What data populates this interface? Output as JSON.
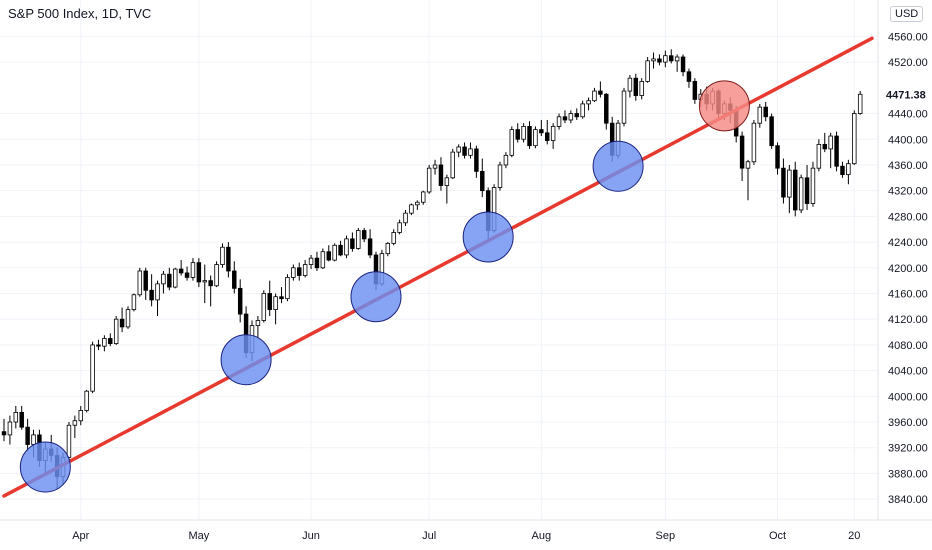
{
  "header": {
    "title": "S&P 500 Index, 1D, TVC",
    "currency": "USD",
    "last_price": "4471.38"
  },
  "chart_data": {
    "type": "candlestick",
    "title": "S&P 500 Index, 1D, TVC",
    "ylim": [
      3820,
      4570
    ],
    "xlim": [
      0,
      147
    ],
    "y_ticks": [
      "3840.00",
      "3880.00",
      "3920.00",
      "3960.00",
      "4000.00",
      "4040.00",
      "4080.00",
      "4120.00",
      "4160.00",
      "4200.00",
      "4240.00",
      "4280.00",
      "4320.00",
      "4360.00",
      "4400.00",
      "4440.00",
      "4520.00",
      "4560.00"
    ],
    "x_ticks": [
      {
        "label": "Apr",
        "x": 13
      },
      {
        "label": "May",
        "x": 33
      },
      {
        "label": "Jun",
        "x": 52
      },
      {
        "label": "Jul",
        "x": 72
      },
      {
        "label": "Aug",
        "x": 91
      },
      {
        "label": "Sep",
        "x": 112
      },
      {
        "label": "Oct",
        "x": 131
      },
      {
        "label": "20",
        "x": 144
      }
    ],
    "trendline": {
      "x1": 0,
      "y1": 3845,
      "x2": 147,
      "y2": 4557,
      "color": "#e8392f"
    },
    "circles": [
      {
        "x": 7,
        "y": 3890,
        "color": "#6b8ff2",
        "stroke": "#1a237e"
      },
      {
        "x": 41,
        "y": 4057,
        "color": "#6b8ff2",
        "stroke": "#1a237e"
      },
      {
        "x": 63,
        "y": 4155,
        "color": "#6b8ff2",
        "stroke": "#1a237e"
      },
      {
        "x": 82,
        "y": 4248,
        "color": "#6b8ff2",
        "stroke": "#1a237e"
      },
      {
        "x": 104,
        "y": 4358,
        "color": "#6b8ff2",
        "stroke": "#1a237e"
      },
      {
        "x": 122,
        "y": 4452,
        "color": "#f48a85",
        "stroke": "#7f1d1d"
      }
    ],
    "candles": [
      [
        3945,
        3965,
        3930,
        3940
      ],
      [
        3940,
        3970,
        3925,
        3960
      ],
      [
        3960,
        3985,
        3950,
        3975
      ],
      [
        3975,
        3985,
        3948,
        3952
      ],
      [
        3952,
        3965,
        3915,
        3925
      ],
      [
        3925,
        3948,
        3905,
        3940
      ],
      [
        3940,
        3948,
        3890,
        3900
      ],
      [
        3900,
        3928,
        3880,
        3918
      ],
      [
        3918,
        3940,
        3898,
        3908
      ],
      [
        3908,
        3920,
        3855,
        3875
      ],
      [
        3875,
        3912,
        3862,
        3905
      ],
      [
        3905,
        3960,
        3900,
        3955
      ],
      [
        3955,
        3970,
        3935,
        3962
      ],
      [
        3962,
        3985,
        3955,
        3978
      ],
      [
        3978,
        4010,
        3975,
        4008
      ],
      [
        4008,
        4085,
        4005,
        4080
      ],
      [
        4080,
        4088,
        4072,
        4078
      ],
      [
        4078,
        4095,
        4070,
        4090
      ],
      [
        4090,
        4098,
        4078,
        4082
      ],
      [
        4082,
        4125,
        4080,
        4120
      ],
      [
        4120,
        4138,
        4100,
        4108
      ],
      [
        4108,
        4140,
        4105,
        4135
      ],
      [
        4135,
        4160,
        4132,
        4158
      ],
      [
        4158,
        4200,
        4155,
        4195
      ],
      [
        4195,
        4200,
        4150,
        4165
      ],
      [
        4165,
        4190,
        4140,
        4150
      ],
      [
        4150,
        4180,
        4125,
        4175
      ],
      [
        4175,
        4195,
        4160,
        4190
      ],
      [
        4190,
        4200,
        4165,
        4170
      ],
      [
        4170,
        4200,
        4168,
        4198
      ],
      [
        4198,
        4212,
        4188,
        4192
      ],
      [
        4192,
        4202,
        4180,
        4185
      ],
      [
        4185,
        4215,
        4180,
        4208
      ],
      [
        4208,
        4215,
        4170,
        4178
      ],
      [
        4178,
        4205,
        4145,
        4180
      ],
      [
        4180,
        4188,
        4140,
        4172
      ],
      [
        4172,
        4210,
        4170,
        4205
      ],
      [
        4205,
        4238,
        4200,
        4232
      ],
      [
        4232,
        4240,
        4185,
        4195
      ],
      [
        4195,
        4210,
        4160,
        4168
      ],
      [
        4168,
        4182,
        4115,
        4128
      ],
      [
        4128,
        4140,
        4060,
        4068
      ],
      [
        4068,
        4118,
        4055,
        4110
      ],
      [
        4110,
        4125,
        4090,
        4118
      ],
      [
        4118,
        4165,
        4115,
        4160
      ],
      [
        4160,
        4180,
        4125,
        4135
      ],
      [
        4135,
        4160,
        4112,
        4155
      ],
      [
        4155,
        4170,
        4145,
        4152
      ],
      [
        4152,
        4190,
        4148,
        4185
      ],
      [
        4185,
        4205,
        4180,
        4200
      ],
      [
        4200,
        4208,
        4180,
        4188
      ],
      [
        4188,
        4212,
        4185,
        4205
      ],
      [
        4205,
        4220,
        4198,
        4215
      ],
      [
        4215,
        4225,
        4195,
        4200
      ],
      [
        4200,
        4230,
        4198,
        4225
      ],
      [
        4225,
        4235,
        4210,
        4212
      ],
      [
        4212,
        4238,
        4210,
        4235
      ],
      [
        4235,
        4242,
        4218,
        4220
      ],
      [
        4220,
        4250,
        4215,
        4245
      ],
      [
        4245,
        4255,
        4225,
        4230
      ],
      [
        4230,
        4262,
        4228,
        4258
      ],
      [
        4258,
        4262,
        4240,
        4245
      ],
      [
        4245,
        4260,
        4215,
        4220
      ],
      [
        4220,
        4225,
        4165,
        4175
      ],
      [
        4175,
        4228,
        4172,
        4222
      ],
      [
        4222,
        4240,
        4218,
        4238
      ],
      [
        4238,
        4260,
        4235,
        4255
      ],
      [
        4255,
        4275,
        4252,
        4270
      ],
      [
        4270,
        4290,
        4265,
        4285
      ],
      [
        4285,
        4300,
        4282,
        4298
      ],
      [
        4298,
        4305,
        4290,
        4302
      ],
      [
        4302,
        4320,
        4298,
        4318
      ],
      [
        4318,
        4360,
        4315,
        4355
      ],
      [
        4355,
        4368,
        4345,
        4360
      ],
      [
        4360,
        4372,
        4320,
        4328
      ],
      [
        4328,
        4345,
        4300,
        4340
      ],
      [
        4340,
        4385,
        4338,
        4380
      ],
      [
        4380,
        4392,
        4372,
        4388
      ],
      [
        4388,
        4395,
        4370,
        4375
      ],
      [
        4375,
        4395,
        4370,
        4385
      ],
      [
        4385,
        4390,
        4340,
        4350
      ],
      [
        4350,
        4370,
        4310,
        4320
      ],
      [
        4320,
        4325,
        4245,
        4258
      ],
      [
        4258,
        4330,
        4255,
        4325
      ],
      [
        4325,
        4365,
        4320,
        4360
      ],
      [
        4360,
        4380,
        4355,
        4375
      ],
      [
        4375,
        4420,
        4372,
        4415
      ],
      [
        4415,
        4425,
        4395,
        4400
      ],
      [
        4400,
        4425,
        4395,
        4420
      ],
      [
        4420,
        4428,
        4385,
        4390
      ],
      [
        4390,
        4420,
        4386,
        4415
      ],
      [
        4415,
        4430,
        4405,
        4410
      ],
      [
        4410,
        4430,
        4392,
        4398
      ],
      [
        4398,
        4425,
        4385,
        4420
      ],
      [
        4420,
        4440,
        4415,
        4435
      ],
      [
        4435,
        4445,
        4425,
        4430
      ],
      [
        4430,
        4445,
        4425,
        4440
      ],
      [
        4440,
        4448,
        4430,
        4435
      ],
      [
        4435,
        4460,
        4432,
        4455
      ],
      [
        4455,
        4465,
        4445,
        4460
      ],
      [
        4460,
        4480,
        4458,
        4475
      ],
      [
        4475,
        4490,
        4465,
        4470
      ],
      [
        4470,
        4472,
        4415,
        4425
      ],
      [
        4425,
        4435,
        4365,
        4375
      ],
      [
        4375,
        4430,
        4370,
        4425
      ],
      [
        4425,
        4480,
        4420,
        4475
      ],
      [
        4475,
        4500,
        4465,
        4495
      ],
      [
        4495,
        4502,
        4460,
        4468
      ],
      [
        4468,
        4495,
        4462,
        4490
      ],
      [
        4490,
        4528,
        4488,
        4522
      ],
      [
        4522,
        4535,
        4510,
        4525
      ],
      [
        4525,
        4532,
        4515,
        4520
      ],
      [
        4520,
        4538,
        4512,
        4530
      ],
      [
        4530,
        4540,
        4518,
        4522
      ],
      [
        4522,
        4532,
        4505,
        4528
      ],
      [
        4528,
        4532,
        4498,
        4505
      ],
      [
        4505,
        4510,
        4480,
        4490
      ],
      [
        4490,
        4495,
        4455,
        4462
      ],
      [
        4462,
        4478,
        4450,
        4470
      ],
      [
        4470,
        4482,
        4445,
        4455
      ],
      [
        4455,
        4480,
        4445,
        4475
      ],
      [
        4475,
        4478,
        4430,
        4440
      ],
      [
        4440,
        4460,
        4430,
        4455
      ],
      [
        4455,
        4465,
        4425,
        4445
      ],
      [
        4445,
        4452,
        4395,
        4405
      ],
      [
        4405,
        4412,
        4335,
        4355
      ],
      [
        4355,
        4368,
        4305,
        4365
      ],
      [
        4365,
        4430,
        4360,
        4425
      ],
      [
        4425,
        4455,
        4418,
        4450
      ],
      [
        4450,
        4458,
        4428,
        4435
      ],
      [
        4435,
        4440,
        4385,
        4390
      ],
      [
        4390,
        4395,
        4345,
        4355
      ],
      [
        4355,
        4370,
        4300,
        4310
      ],
      [
        4310,
        4360,
        4285,
        4352
      ],
      [
        4352,
        4365,
        4280,
        4290
      ],
      [
        4290,
        4345,
        4285,
        4340
      ],
      [
        4340,
        4360,
        4290,
        4300
      ],
      [
        4300,
        4365,
        4295,
        4355
      ],
      [
        4355,
        4400,
        4350,
        4392
      ],
      [
        4392,
        4410,
        4380,
        4385
      ],
      [
        4385,
        4410,
        4355,
        4405
      ],
      [
        4405,
        4412,
        4350,
        4358
      ],
      [
        4358,
        4365,
        4340,
        4345
      ],
      [
        4345,
        4368,
        4330,
        4362
      ],
      [
        4362,
        4445,
        4360,
        4440
      ],
      [
        4440,
        4475,
        4438,
        4470
      ]
    ]
  }
}
